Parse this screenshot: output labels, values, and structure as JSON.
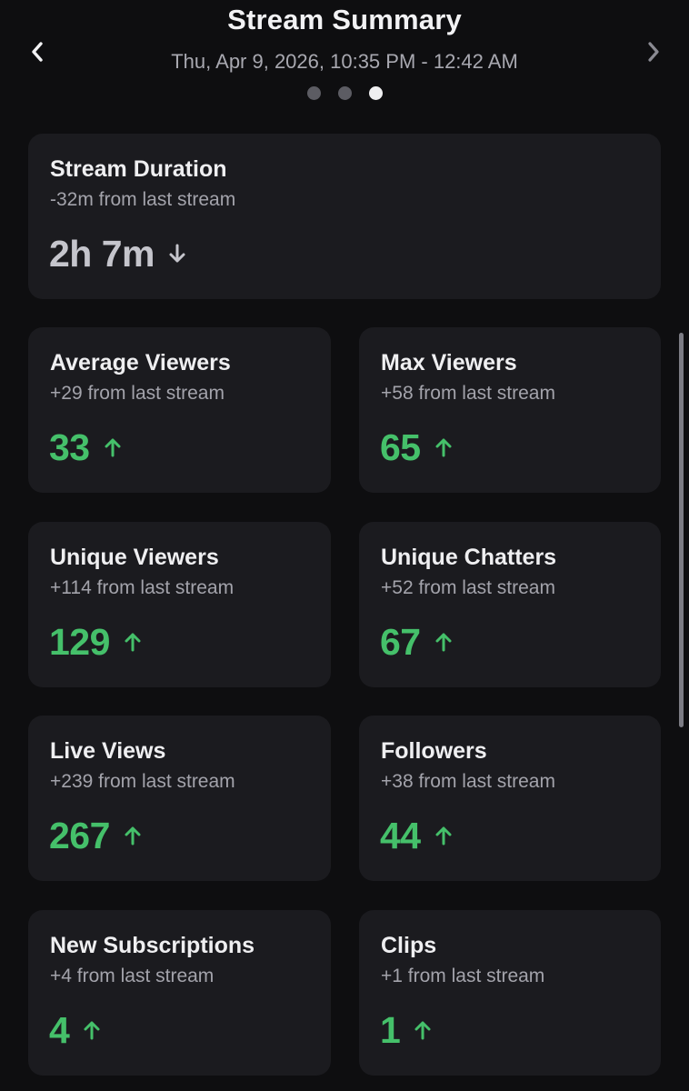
{
  "header": {
    "title": "Stream Summary",
    "subtitle": "Thu, Apr 9, 2026, 10:35 PM - 12:42 AM",
    "prev_icon": "chevron-left-icon",
    "next_icon": "chevron-right-icon",
    "page_count": 3,
    "active_page": 3
  },
  "colors": {
    "background": "#0e0e10",
    "card": "#1b1b1f",
    "positive": "#45c06a",
    "neutral_value": "#c5c5cc"
  },
  "cards": {
    "duration": {
      "label": "Stream Duration",
      "delta": "-32m from last stream",
      "value": "2h 7m",
      "trend": "down"
    },
    "avg_viewers": {
      "label": "Average Viewers",
      "delta": "+29 from last stream",
      "value": "33",
      "trend": "up"
    },
    "max_viewers": {
      "label": "Max Viewers",
      "delta": "+58 from last stream",
      "value": "65",
      "trend": "up"
    },
    "unique_viewers": {
      "label": "Unique Viewers",
      "delta": "+114 from last stream",
      "value": "129",
      "trend": "up"
    },
    "unique_chatters": {
      "label": "Unique Chatters",
      "delta": "+52 from last stream",
      "value": "67",
      "trend": "up"
    },
    "live_views": {
      "label": "Live Views",
      "delta": "+239 from last stream",
      "value": "267",
      "trend": "up"
    },
    "followers": {
      "label": "Followers",
      "delta": "+38 from last stream",
      "value": "44",
      "trend": "up"
    },
    "new_subs": {
      "label": "New Subscriptions",
      "delta": "+4 from last stream",
      "value": "4",
      "trend": "up"
    },
    "clips": {
      "label": "Clips",
      "delta": "+1 from last stream",
      "value": "1",
      "trend": "up"
    }
  }
}
